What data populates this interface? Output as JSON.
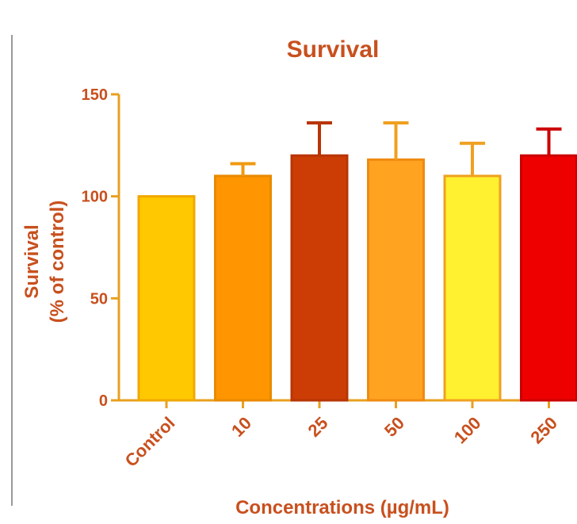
{
  "chart_data": {
    "type": "bar",
    "title": "Survival",
    "ylabel_line1": "Survival",
    "ylabel_line2": "(% of control)",
    "xlabel": "Concentrations (µg/mL)",
    "categories": [
      "Control",
      "10",
      "25",
      "50",
      "100",
      "250"
    ],
    "values": [
      100,
      110,
      120,
      118,
      110,
      120
    ],
    "error_upper": [
      0,
      6,
      16,
      18,
      16,
      13
    ],
    "ylim": [
      0,
      150
    ],
    "yticks": [
      0,
      50,
      100,
      150
    ],
    "grid": false,
    "bar_colors": [
      "#FFC800",
      "#FF9500",
      "#CC3D05",
      "#FFA320",
      "#FFF030",
      "#EE0000"
    ],
    "bar_border_colors": [
      "#F0A800",
      "#E88A00",
      "#B83505",
      "#F08A10",
      "#F0A020",
      "#CC0000"
    ],
    "error_colors": [
      "#F0A800",
      "#F09A10",
      "#B83505",
      "#F0A020",
      "#F0A020",
      "#CC0000"
    ],
    "text_color": "#C8501E",
    "axis_color": "#E8A020"
  }
}
